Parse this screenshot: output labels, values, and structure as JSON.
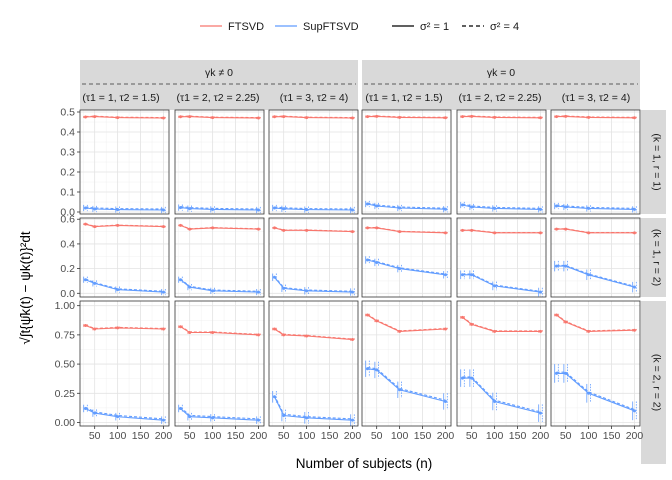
{
  "legend": {
    "methods": [
      {
        "name": "FTSVD",
        "color": "#F8766D"
      },
      {
        "name": "SupFTSVD",
        "color": "#619CFF"
      }
    ],
    "noise": [
      {
        "label": "σ² = 1",
        "style": "solid"
      },
      {
        "label": "σ² = 4",
        "style": "dashed"
      }
    ]
  },
  "strips": {
    "groups": [
      {
        "label": "γk ≠ 0"
      },
      {
        "label": "γk = 0"
      }
    ],
    "columns": [
      "(τ1 = 1, τ2 = 1.5)",
      "(τ1 = 2, τ2 = 2.25)",
      "(τ1 = 3, τ2 = 4)",
      "(τ1 = 1, τ2 = 1.5)",
      "(τ1 = 2, τ2 = 2.25)",
      "(τ1 = 3, τ2 = 4)"
    ],
    "rows": [
      "(k = 1, r = 1)",
      "(k = 1, r = 2)",
      "(k = 2, r = 2)"
    ]
  },
  "axes": {
    "xlabel": "Number of subjects (n)",
    "ylabel": "√∫t{ψ̂k(t) − ψk(t)}²dt"
  },
  "chart_data": {
    "type": "line",
    "x": [
      30,
      50,
      100,
      200
    ],
    "xticks": [
      50,
      100,
      150,
      200
    ],
    "xlim": [
      18,
      212
    ],
    "rows": [
      {
        "label": "(k = 1, r = 1)",
        "ylim": [
          -0.01,
          0.51
        ],
        "yticks": [
          0.0,
          0.1,
          0.2,
          0.3,
          0.4,
          0.5
        ],
        "yticklabels": [
          "0.0",
          "0.1",
          "0.2",
          "0.3",
          "0.4",
          "0.5"
        ],
        "panels": [
          {
            "FTSVD": [
              0.475,
              0.477,
              0.472,
              0.47
            ],
            "SupFTSVD": [
              0.02,
              0.015,
              0.012,
              0.01
            ]
          },
          {
            "FTSVD": [
              0.476,
              0.477,
              0.472,
              0.47
            ],
            "SupFTSVD": [
              0.022,
              0.017,
              0.013,
              0.01
            ]
          },
          {
            "FTSVD": [
              0.476,
              0.477,
              0.472,
              0.47
            ],
            "SupFTSVD": [
              0.02,
              0.016,
              0.012,
              0.01
            ]
          },
          {
            "FTSVD": [
              0.477,
              0.478,
              0.473,
              0.471
            ],
            "SupFTSVD": [
              0.04,
              0.03,
              0.02,
              0.014
            ]
          },
          {
            "FTSVD": [
              0.477,
              0.478,
              0.473,
              0.471
            ],
            "SupFTSVD": [
              0.035,
              0.025,
              0.018,
              0.013
            ]
          },
          {
            "FTSVD": [
              0.477,
              0.478,
              0.473,
              0.471
            ],
            "SupFTSVD": [
              0.03,
              0.025,
              0.018,
              0.013
            ]
          }
        ]
      },
      {
        "label": "(k = 1, r = 2)",
        "ylim": [
          -0.03,
          0.61
        ],
        "yticks": [
          0.0,
          0.2,
          0.4,
          0.6
        ],
        "yticklabels": [
          "0.0",
          "0.2",
          "0.4",
          "0.6"
        ],
        "panels": [
          {
            "FTSVD": [
              0.56,
              0.54,
              0.55,
              0.54
            ],
            "SupFTSVD": [
              0.11,
              0.08,
              0.03,
              0.01
            ]
          },
          {
            "FTSVD": [
              0.55,
              0.52,
              0.53,
              0.52
            ],
            "SupFTSVD": [
              0.11,
              0.05,
              0.02,
              0.01
            ]
          },
          {
            "FTSVD": [
              0.53,
              0.51,
              0.51,
              0.5
            ],
            "SupFTSVD": [
              0.13,
              0.04,
              0.02,
              0.01
            ]
          },
          {
            "FTSVD": [
              0.53,
              0.53,
              0.5,
              0.49
            ],
            "SupFTSVD": [
              0.27,
              0.25,
              0.2,
              0.15
            ]
          },
          {
            "FTSVD": [
              0.51,
              0.51,
              0.49,
              0.49
            ],
            "SupFTSVD": [
              0.15,
              0.15,
              0.06,
              0.01
            ]
          },
          {
            "FTSVD": [
              0.52,
              0.52,
              0.49,
              0.49
            ],
            "SupFTSVD": [
              0.22,
              0.22,
              0.15,
              0.05
            ]
          }
        ]
      },
      {
        "label": "(k = 2, r = 2)",
        "ylim": [
          -0.03,
          1.04
        ],
        "yticks": [
          0.0,
          0.25,
          0.5,
          0.75,
          1.0
        ],
        "yticklabels": [
          "0.00",
          "0.25",
          "0.50",
          "0.75",
          "1.00"
        ],
        "panels": [
          {
            "FTSVD": [
              0.83,
              0.8,
              0.81,
              0.8
            ],
            "SupFTSVD": [
              0.12,
              0.08,
              0.05,
              0.02
            ]
          },
          {
            "FTSVD": [
              0.82,
              0.77,
              0.77,
              0.75
            ],
            "SupFTSVD": [
              0.12,
              0.05,
              0.04,
              0.02
            ]
          },
          {
            "FTSVD": [
              0.8,
              0.75,
              0.74,
              0.71
            ],
            "SupFTSVD": [
              0.22,
              0.06,
              0.04,
              0.02
            ]
          },
          {
            "FTSVD": [
              0.92,
              0.87,
              0.78,
              0.8
            ],
            "SupFTSVD": [
              0.46,
              0.45,
              0.28,
              0.18
            ]
          },
          {
            "FTSVD": [
              0.9,
              0.84,
              0.78,
              0.78
            ],
            "SupFTSVD": [
              0.38,
              0.38,
              0.18,
              0.08
            ]
          },
          {
            "FTSVD": [
              0.92,
              0.86,
              0.78,
              0.79
            ],
            "SupFTSVD": [
              0.42,
              0.42,
              0.25,
              0.1
            ]
          }
        ]
      }
    ]
  }
}
